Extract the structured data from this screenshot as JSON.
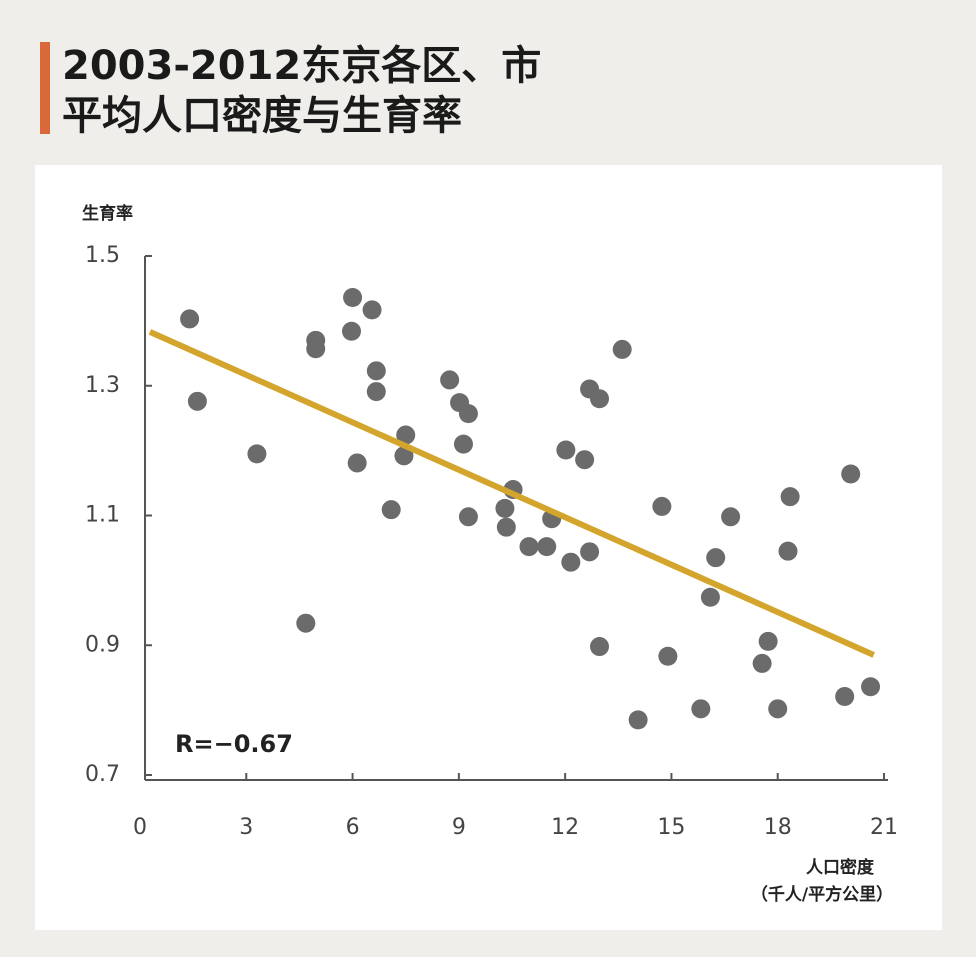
{
  "chart_data": {
    "type": "scatter",
    "title": [
      "2003-2012东京各区、市",
      "平均人口密度与生育率"
    ],
    "y_label": "生育率",
    "x_label": [
      "人口密度",
      "（千人/平方公里）"
    ],
    "annotation": "R=−0.67",
    "color": "#6b6b6b",
    "trend_color": "#d4a52c",
    "title_bar_color": "#d9683a",
    "x": [
      1.4,
      1.62,
      3.3,
      4.68,
      4.96,
      4.96,
      6.0,
      5.97,
      6.55,
      6.67,
      6.67,
      6.13,
      7.09,
      7.5,
      7.45,
      8.74,
      9.02,
      9.27,
      9.13,
      9.27,
      10.3,
      10.34,
      10.53,
      10.98,
      11.48,
      11.62,
      12.02,
      12.16,
      12.55,
      12.69,
      12.69,
      12.97,
      12.97,
      13.61,
      14.06,
      14.73,
      14.9,
      15.83,
      16.1,
      16.25,
      16.67,
      17.56,
      17.73,
      18.0,
      18.29,
      18.35,
      19.89,
      20.06,
      20.62
    ],
    "y": [
      1.403,
      1.276,
      1.195,
      0.934,
      1.37,
      1.357,
      1.436,
      1.384,
      1.417,
      1.323,
      1.291,
      1.181,
      1.109,
      1.224,
      1.192,
      1.309,
      1.274,
      1.257,
      1.21,
      1.098,
      1.111,
      1.082,
      1.14,
      1.052,
      1.052,
      1.095,
      1.201,
      1.028,
      1.186,
      1.044,
      1.295,
      1.28,
      0.898,
      1.356,
      0.785,
      1.114,
      0.883,
      0.802,
      0.974,
      1.035,
      1.098,
      0.872,
      0.906,
      0.802,
      1.045,
      1.129,
      0.821,
      1.164,
      0.836
    ],
    "trend": {
      "x": [
        0.28,
        20.71
      ],
      "y": [
        1.383,
        0.885
      ]
    },
    "xlim": [
      0,
      21
    ],
    "xticks": [
      0,
      3,
      6,
      9,
      12,
      15,
      18,
      21
    ],
    "ylim": [
      0.7,
      1.5
    ],
    "yticks": [
      1.5,
      1.3,
      1.1,
      0.9,
      0.7
    ]
  }
}
